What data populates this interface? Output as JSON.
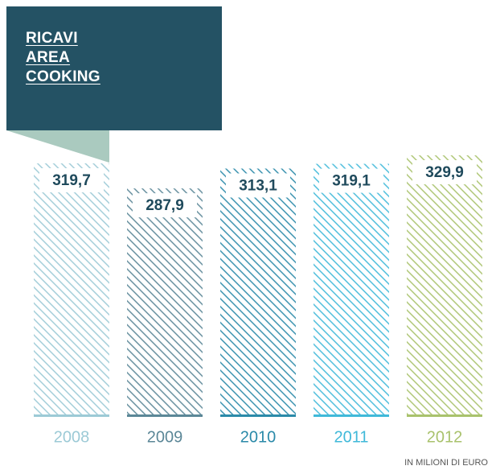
{
  "chart_data": {
    "type": "bar",
    "title": "RICAVI AREA COOKING",
    "categories": [
      "2008",
      "2009",
      "2010",
      "2011",
      "2012"
    ],
    "values": [
      319.7,
      287.9,
      313.1,
      319.1,
      329.9
    ],
    "value_labels": [
      "319,7",
      "287,9",
      "313,1",
      "319,1",
      "329,9"
    ],
    "colors": [
      "#9ccad6",
      "#5b8797",
      "#2b8aa9",
      "#40b9d9",
      "#a9c26c"
    ],
    "note": "IN MILIONI DI EURO"
  }
}
